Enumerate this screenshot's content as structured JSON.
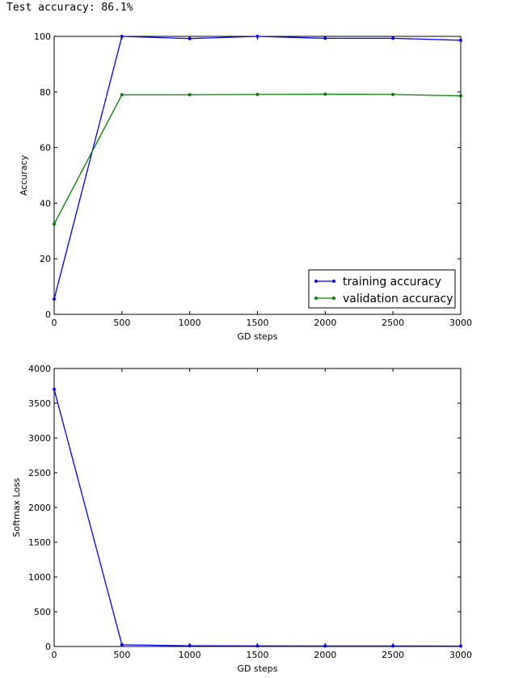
{
  "output": {
    "text": "Test accuracy: 86.1%"
  },
  "chart_data": [
    {
      "type": "line",
      "title": "",
      "xlabel": "GD steps",
      "ylabel": "Accuracy",
      "xlim": [
        0,
        3000
      ],
      "ylim": [
        0,
        100
      ],
      "xticks": [
        0,
        500,
        1000,
        1500,
        2000,
        2500,
        3000
      ],
      "yticks": [
        0,
        20,
        40,
        60,
        80,
        100
      ],
      "grid": false,
      "legend_position": "lower-right",
      "series": [
        {
          "name": "training accuracy",
          "color": "#0000ff",
          "marker": "dot",
          "x": [
            0,
            500,
            1000,
            1500,
            2000,
            2500,
            3000
          ],
          "y": [
            5.5,
            100,
            99.2,
            100,
            99.3,
            99.3,
            98.6
          ]
        },
        {
          "name": "validation accuracy",
          "color": "#008000",
          "marker": "dot",
          "x": [
            0,
            500,
            1000,
            1500,
            2000,
            2500,
            3000
          ],
          "y": [
            32.5,
            79.0,
            79.0,
            79.1,
            79.2,
            79.1,
            78.6
          ]
        }
      ]
    },
    {
      "type": "line",
      "title": "",
      "xlabel": "GD steps",
      "ylabel": "Softmax Loss",
      "xlim": [
        0,
        3000
      ],
      "ylim": [
        0,
        4000
      ],
      "xticks": [
        0,
        500,
        1000,
        1500,
        2000,
        2500,
        3000
      ],
      "yticks": [
        0,
        500,
        1000,
        1500,
        2000,
        2500,
        3000,
        3500,
        4000
      ],
      "grid": false,
      "series": [
        {
          "color": "#0000ff",
          "marker": "dot",
          "x": [
            0,
            500,
            1000,
            1500,
            2000,
            2500,
            3000
          ],
          "y": [
            3700,
            25,
            10,
            8,
            7,
            7,
            6
          ]
        }
      ]
    }
  ]
}
